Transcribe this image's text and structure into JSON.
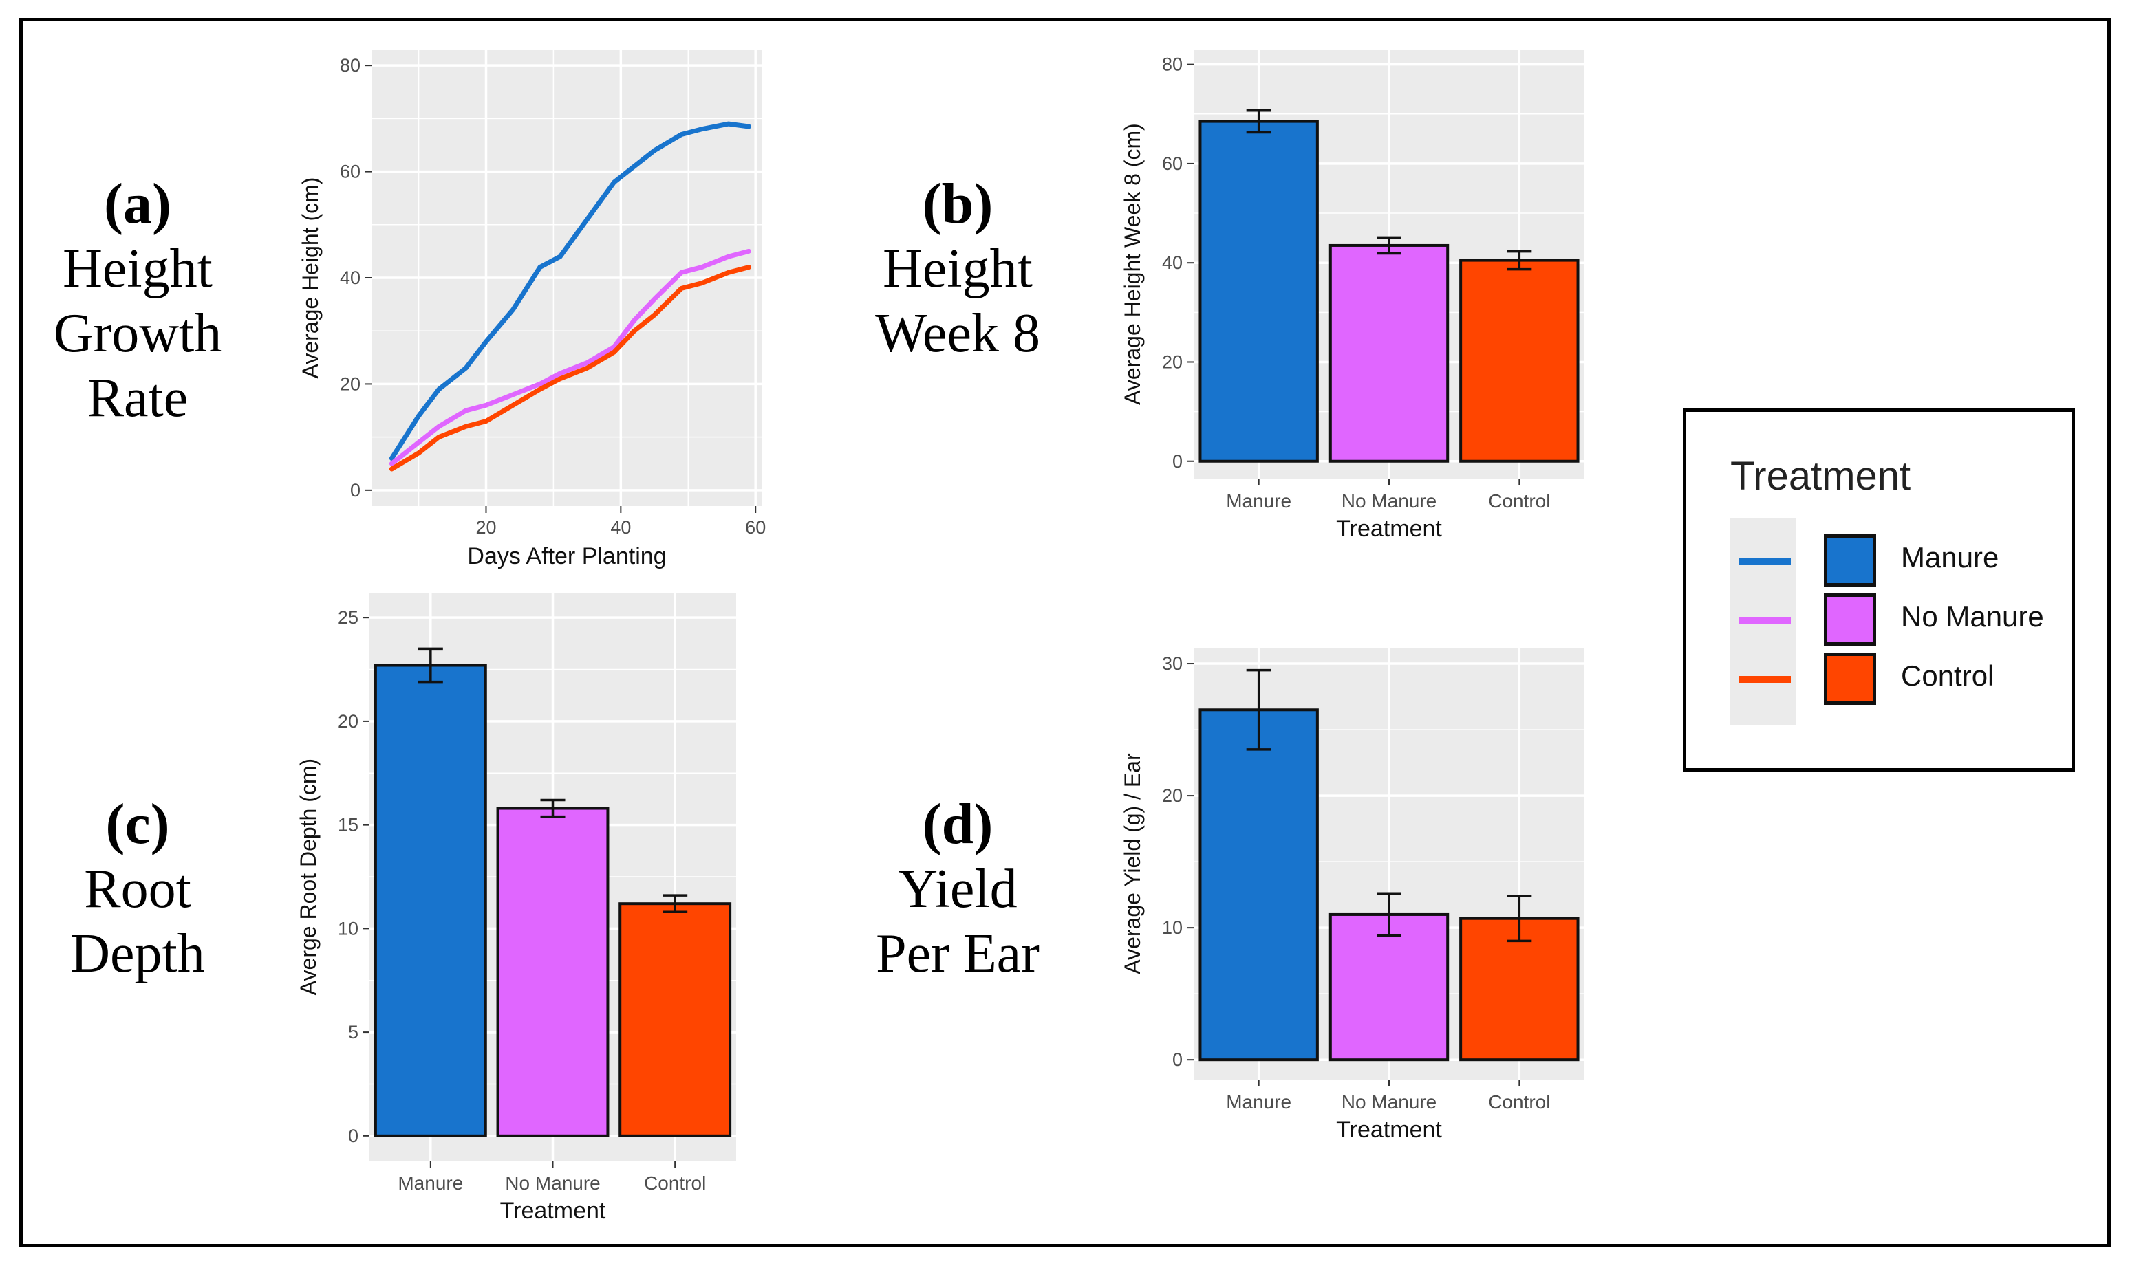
{
  "panels": {
    "a": {
      "letter": "(a)",
      "lines": [
        "Height",
        "Growth",
        "Rate"
      ]
    },
    "b": {
      "letter": "(b)",
      "lines": [
        "Height",
        "Week 8"
      ]
    },
    "c": {
      "letter": "(c)",
      "lines": [
        "Root",
        "Depth"
      ]
    },
    "d": {
      "letter": "(d)",
      "lines": [
        "Yield",
        "Per Ear"
      ]
    }
  },
  "legend": {
    "title": "Treatment",
    "items": [
      {
        "label": "Manure",
        "color": "#1874cd"
      },
      {
        "label": "No Manure",
        "color": "#e066ff"
      },
      {
        "label": "Control",
        "color": "#ff4500"
      }
    ]
  },
  "chart_data": [
    {
      "id": "a",
      "type": "line",
      "title": "",
      "xlabel": "Days After Planting",
      "ylabel": "Average Height (cm)",
      "xlim": [
        3,
        61
      ],
      "ylim": [
        -3,
        83
      ],
      "xticks": [
        20,
        40,
        60
      ],
      "yticks": [
        0,
        20,
        40,
        60,
        80
      ],
      "grid": true,
      "series": [
        {
          "name": "Manure",
          "color": "#1874cd",
          "x": [
            6,
            10,
            13,
            17,
            20,
            24,
            28,
            31,
            35,
            39,
            42,
            45,
            49,
            52,
            56,
            59
          ],
          "y": [
            6,
            14,
            19,
            23,
            28,
            34,
            42,
            44,
            51,
            58,
            61,
            64,
            67,
            68,
            69,
            68.5
          ]
        },
        {
          "name": "No Manure",
          "color": "#e066ff",
          "x": [
            6,
            10,
            13,
            17,
            20,
            24,
            28,
            31,
            35,
            39,
            42,
            45,
            49,
            52,
            56,
            59
          ],
          "y": [
            5,
            9,
            12,
            15,
            16,
            18,
            20,
            22,
            24,
            27,
            32,
            36,
            41,
            42,
            44,
            45
          ]
        },
        {
          "name": "Control",
          "color": "#ff4500",
          "x": [
            6,
            10,
            13,
            17,
            20,
            24,
            28,
            31,
            35,
            39,
            42,
            45,
            49,
            52,
            56,
            59
          ],
          "y": [
            4,
            7,
            10,
            12,
            13,
            16,
            19,
            21,
            23,
            26,
            30,
            33,
            38,
            39,
            41,
            42
          ]
        }
      ]
    },
    {
      "id": "b",
      "type": "bar",
      "title": "",
      "xlabel": "Treatment",
      "ylabel": "Average Height Week 8 (cm)",
      "categories": [
        "Manure",
        "No Manure",
        "Control"
      ],
      "values": [
        68.5,
        43.5,
        40.5
      ],
      "errors": [
        2.2,
        1.6,
        1.8
      ],
      "colors": [
        "#1874cd",
        "#e066ff",
        "#ff4500"
      ],
      "ylim": [
        -3.5,
        83
      ],
      "yticks": [
        0,
        20,
        40,
        60,
        80
      ],
      "grid": true
    },
    {
      "id": "c",
      "type": "bar",
      "title": "",
      "xlabel": "Treatment",
      "ylabel": "Averge Root Depth (cm)",
      "categories": [
        "Manure",
        "No Manure",
        "Control"
      ],
      "values": [
        22.7,
        15.8,
        11.2
      ],
      "errors": [
        0.8,
        0.4,
        0.4
      ],
      "colors": [
        "#1874cd",
        "#e066ff",
        "#ff4500"
      ],
      "ylim": [
        -1.2,
        26.2
      ],
      "yticks": [
        0,
        5,
        10,
        15,
        20,
        25
      ],
      "grid": true
    },
    {
      "id": "d",
      "type": "bar",
      "title": "",
      "xlabel": "Treatment",
      "ylabel": "Average Yield (g) / Ear",
      "categories": [
        "Manure",
        "No Manure",
        "Control"
      ],
      "values": [
        26.5,
        11,
        10.7
      ],
      "errors": [
        3,
        1.6,
        1.7
      ],
      "colors": [
        "#1874cd",
        "#e066ff",
        "#ff4500"
      ],
      "ylim": [
        -1.5,
        31.2
      ],
      "yticks": [
        0,
        10,
        20,
        30
      ],
      "grid": true
    }
  ]
}
